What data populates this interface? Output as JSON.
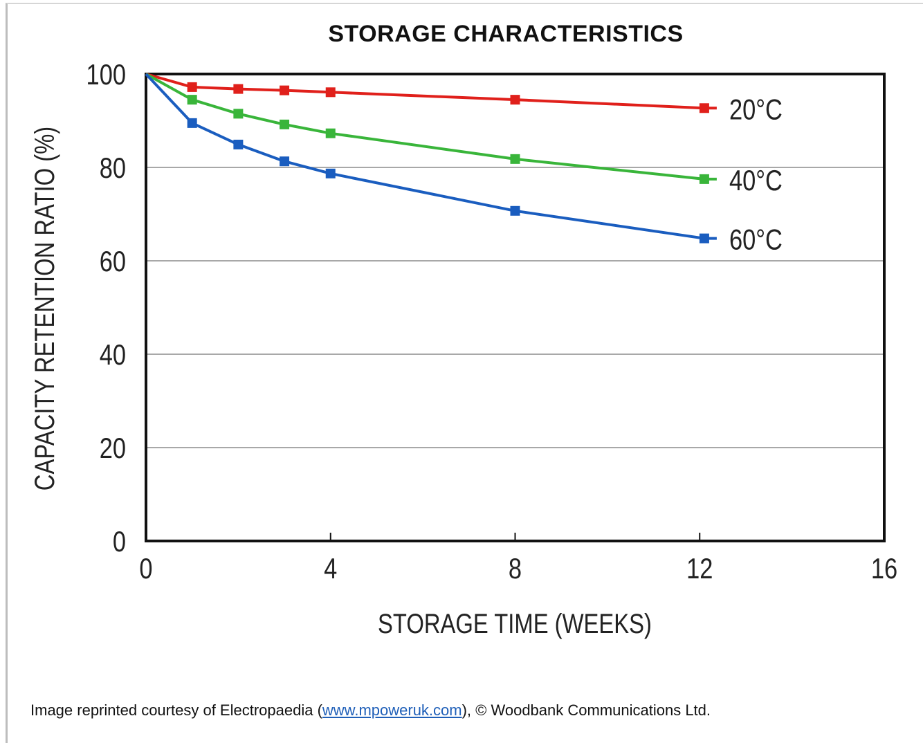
{
  "chart_data": {
    "type": "line",
    "title": "STORAGE CHARACTERISTICS",
    "xlabel": "STORAGE TIME (WEEKS)",
    "ylabel": "CAPACITY RETENTION RATIO (%)",
    "xlim": [
      0,
      16
    ],
    "ylim": [
      0,
      100
    ],
    "x_ticks": [
      "0",
      "4",
      "8",
      "12",
      "16"
    ],
    "y_ticks": [
      "0",
      "20",
      "40",
      "60",
      "80",
      "100"
    ],
    "grid": "horizontal",
    "series": [
      {
        "name": "20°C",
        "color": "#e0201b",
        "x": [
          0,
          1,
          2,
          3,
          4,
          8,
          12.1
        ],
        "y": [
          100,
          97.2,
          96.8,
          96.5,
          96.1,
          94.5,
          92.7
        ]
      },
      {
        "name": "40°C",
        "color": "#39b53a",
        "x": [
          0,
          1,
          2,
          3,
          4,
          8,
          12.1
        ],
        "y": [
          100,
          94.5,
          91.5,
          89.2,
          87.3,
          81.8,
          77.5
        ]
      },
      {
        "name": "60°C",
        "color": "#1a5dbf",
        "x": [
          0,
          1,
          2,
          3,
          4,
          8,
          12.1
        ],
        "y": [
          100,
          89.5,
          84.9,
          81.3,
          78.7,
          70.7,
          64.8
        ]
      }
    ]
  },
  "credit": {
    "prefix": "Image reprinted courtesy of Electropaedia (",
    "link": "www.mpoweruk.com",
    "suffix": "), © Woodbank Communications Ltd."
  }
}
